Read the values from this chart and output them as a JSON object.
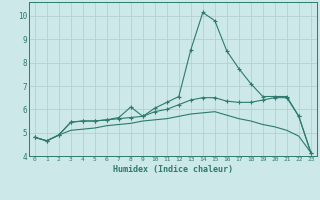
{
  "xlabel": "Humidex (Indice chaleur)",
  "x": [
    0,
    1,
    2,
    3,
    4,
    5,
    6,
    7,
    8,
    9,
    10,
    11,
    12,
    13,
    14,
    15,
    16,
    17,
    18,
    19,
    20,
    21,
    22,
    23
  ],
  "line1_y": [
    4.8,
    4.65,
    4.9,
    5.45,
    5.5,
    5.5,
    5.55,
    5.65,
    6.1,
    5.7,
    6.05,
    6.3,
    6.55,
    8.55,
    10.15,
    9.8,
    8.5,
    7.75,
    7.1,
    6.55,
    6.55,
    6.55,
    5.7,
    4.15
  ],
  "line2_y": [
    4.8,
    4.65,
    4.9,
    5.1,
    5.15,
    5.2,
    5.3,
    5.35,
    5.4,
    5.5,
    5.55,
    5.6,
    5.7,
    5.8,
    5.85,
    5.9,
    5.75,
    5.6,
    5.5,
    5.35,
    5.25,
    5.1,
    4.85,
    4.15
  ],
  "line3_y": [
    4.8,
    4.65,
    4.9,
    5.45,
    5.5,
    5.5,
    5.55,
    5.6,
    5.65,
    5.7,
    5.9,
    6.0,
    6.2,
    6.4,
    6.5,
    6.5,
    6.35,
    6.3,
    6.3,
    6.4,
    6.5,
    6.5,
    5.7,
    4.15
  ],
  "line_color": "#2d7a6e",
  "bg_color": "#cce8e8",
  "grid_color": "#b0cccc",
  "ylim": [
    4.0,
    10.6
  ],
  "xlim": [
    -0.5,
    23.5
  ],
  "yticks": [
    4,
    5,
    6,
    7,
    8,
    9,
    10
  ],
  "xticks": [
    0,
    1,
    2,
    3,
    4,
    5,
    6,
    7,
    8,
    9,
    10,
    11,
    12,
    13,
    14,
    15,
    16,
    17,
    18,
    19,
    20,
    21,
    22,
    23
  ]
}
